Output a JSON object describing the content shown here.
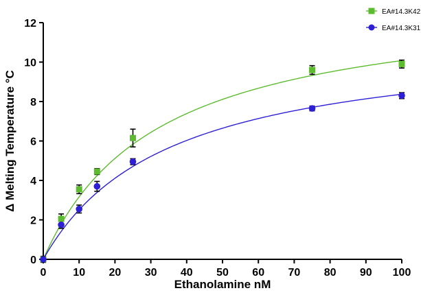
{
  "chart_data": {
    "type": "scatter",
    "title": "",
    "xlabel": "Ethanolamine nM",
    "ylabel": "Δ Melting Temperature °C",
    "xlim": [
      0,
      100
    ],
    "ylim": [
      0,
      12
    ],
    "xticks": [
      0,
      10,
      20,
      30,
      40,
      50,
      60,
      70,
      80,
      90,
      100
    ],
    "yticks": [
      0,
      2,
      4,
      6,
      8,
      10,
      12
    ],
    "grid": false,
    "legend_position": "top-right",
    "series": [
      {
        "name": "EA#14.3K42",
        "color": "#5dbb2f",
        "marker": "square",
        "x": [
          0,
          5,
          10,
          15,
          25,
          75,
          100
        ],
        "y": [
          0.0,
          2.05,
          3.55,
          4.45,
          6.15,
          9.6,
          9.9
        ],
        "err": [
          0.15,
          0.25,
          0.22,
          0.15,
          0.45,
          0.22,
          0.2
        ],
        "fit": {
          "model": "one-site-binding",
          "bmax": 13.3,
          "kd": 32
        }
      },
      {
        "name": "EA#14.3K31",
        "color": "#2d1fd6",
        "marker": "circle",
        "x": [
          0,
          5,
          10,
          15,
          25,
          75,
          100
        ],
        "y": [
          0.0,
          1.75,
          2.55,
          3.7,
          4.95,
          7.65,
          8.3
        ],
        "err": [
          0.15,
          0.18,
          0.2,
          0.25,
          0.15,
          0.12,
          0.15
        ],
        "fit": {
          "model": "one-site-binding",
          "bmax": 11.3,
          "kd": 35
        }
      }
    ]
  }
}
